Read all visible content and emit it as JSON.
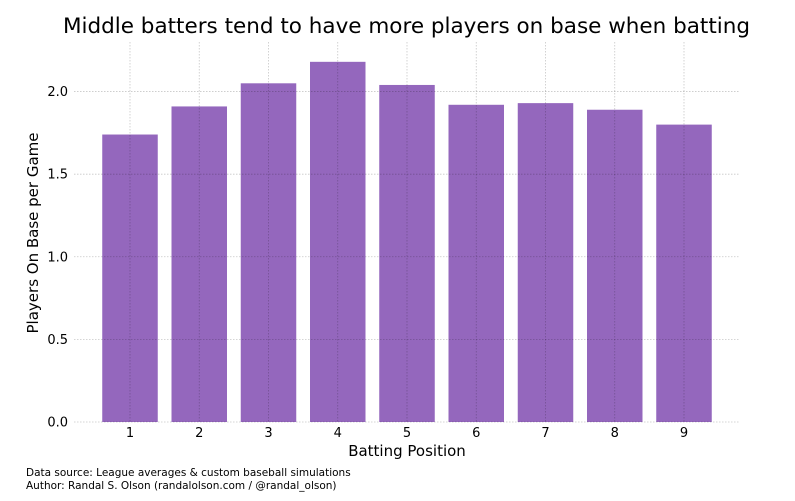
{
  "chart_data": {
    "type": "bar",
    "title": "Middle batters tend to have more players on base when batting",
    "xlabel": "Batting Position",
    "ylabel": "Players On Base per Game",
    "categories": [
      "1",
      "2",
      "3",
      "4",
      "5",
      "6",
      "7",
      "8",
      "9"
    ],
    "values": [
      1.74,
      1.91,
      2.05,
      2.18,
      2.04,
      1.92,
      1.93,
      1.89,
      1.8
    ],
    "ylim": [
      0,
      2.3
    ],
    "yticks": [
      "0.0",
      "0.5",
      "1.0",
      "1.5",
      "2.0"
    ],
    "grid": true,
    "bar_color": "#9467bd"
  },
  "footer": {
    "source": "Data source: League averages & custom baseball simulations",
    "author": "Author: Randal S. Olson (randalolson.com / @randal_olson)"
  }
}
